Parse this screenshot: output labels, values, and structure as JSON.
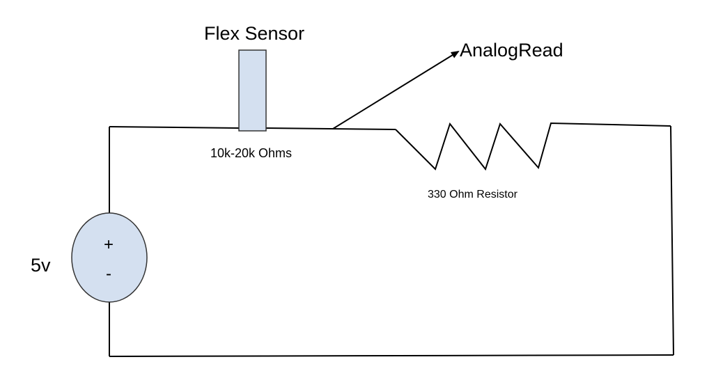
{
  "labels": {
    "sensor": "Flex Sensor",
    "sensor_range": "10k-20k Ohms",
    "analog": "AnalogRead",
    "resistor": "330 Ohm Resistor",
    "voltage": "5v",
    "plus": "+",
    "minus": "-"
  },
  "colors": {
    "wire": "#000000",
    "component_fill": "#d4e0f0",
    "component_stroke": "#333333"
  }
}
